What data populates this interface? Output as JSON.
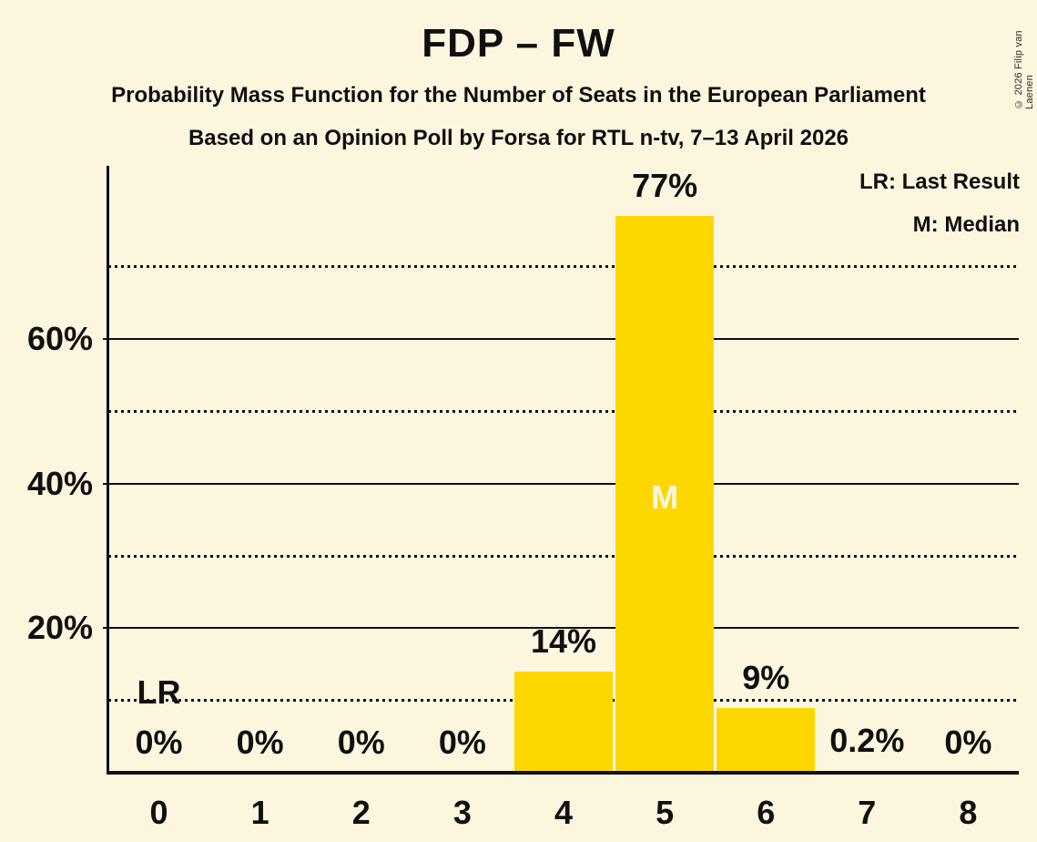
{
  "meta": {
    "copyright": "© 2026 Filip van Laenen"
  },
  "header": {
    "title": "FDP – FW",
    "subtitle": "Probability Mass Function for the Number of Seats in the European Parliament",
    "source_line": "Based on an Opinion Poll by Forsa for RTL n-tv, 7–13 April 2026"
  },
  "legend": {
    "last_result": "LR: Last Result",
    "median": "M: Median"
  },
  "chart_data": {
    "type": "bar",
    "title": "FDP – FW",
    "categories": [
      "0",
      "1",
      "2",
      "3",
      "4",
      "5",
      "6",
      "7",
      "8"
    ],
    "values": [
      0,
      0,
      0,
      0,
      14,
      77,
      9,
      0.2,
      0
    ],
    "value_labels": [
      "0%",
      "0%",
      "0%",
      "0%",
      "14%",
      "77%",
      "9%",
      "0.2%",
      "0%"
    ],
    "xlabel": "",
    "ylabel": "",
    "ylim": [
      0,
      84
    ],
    "y_solid_ticks": [
      {
        "value": 20,
        "label": "20%"
      },
      {
        "value": 40,
        "label": "40%"
      },
      {
        "value": 60,
        "label": "60%"
      }
    ],
    "y_dotted_lines": [
      10,
      30,
      50,
      70
    ],
    "grid": "horizontal",
    "legend_position": "top-right",
    "annotations": {
      "last_result_text": "LR",
      "last_result_category_index": 0,
      "median_text": "M",
      "median_category_index": 5
    },
    "colors": {
      "background": "#FDF6DF",
      "bar": "#FFD700",
      "text": "#101010",
      "median_text": "#FDF6DF"
    }
  }
}
